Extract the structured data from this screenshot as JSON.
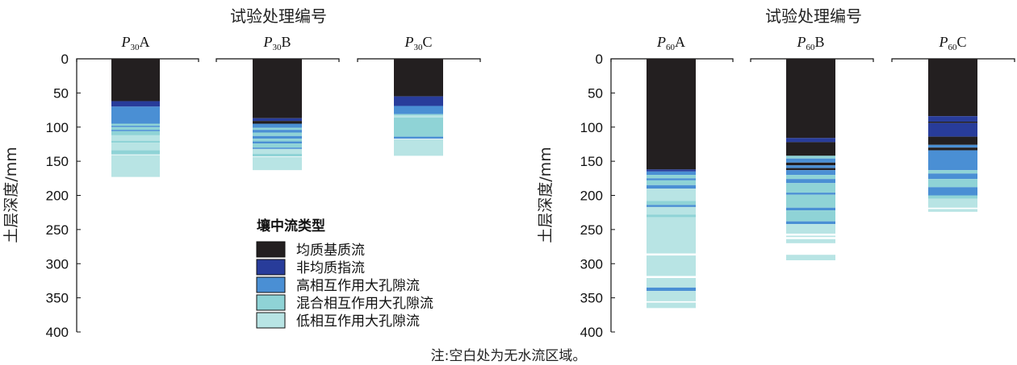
{
  "note": "注:空白处为无水流区域。",
  "legend": {
    "title": "壤中流类型",
    "items": [
      {
        "label": "均质基质流",
        "color": "#231f20"
      },
      {
        "label": "非均质指流",
        "color": "#283c9a"
      },
      {
        "label": "高相互作用大孔隙流",
        "color": "#4a8fd4"
      },
      {
        "label": "混合相互作用大孔隙流",
        "color": "#8fd3d6"
      },
      {
        "label": "低相互作用大孔隙流",
        "color": "#b8e4e4"
      }
    ]
  },
  "chart_data": [
    {
      "type": "bar",
      "title": "试验处理编号",
      "ylabel": "土层深度/mm",
      "ylim": [
        0,
        400
      ],
      "yticks": [
        "0",
        "50",
        "100",
        "150",
        "200",
        "250",
        "300",
        "350",
        "400"
      ],
      "columns": [
        {
          "label": "P",
          "sub": "30",
          "suffix": "A",
          "segments": [
            {
              "type": 0,
              "from": 0,
              "to": 62
            },
            {
              "type": 1,
              "from": 62,
              "to": 70
            },
            {
              "type": 2,
              "from": 70,
              "to": 95
            },
            {
              "type": 3,
              "from": 95,
              "to": 98
            },
            {
              "type": 2,
              "from": 98,
              "to": 100
            },
            {
              "type": 3,
              "from": 100,
              "to": 104
            },
            {
              "type": 2,
              "from": 104,
              "to": 106
            },
            {
              "type": 3,
              "from": 106,
              "to": 112
            },
            {
              "type": 4,
              "from": 112,
              "to": 120
            },
            {
              "type": 3,
              "from": 120,
              "to": 123
            },
            {
              "type": 4,
              "from": 123,
              "to": 134
            },
            {
              "type": 3,
              "from": 134,
              "to": 140
            },
            {
              "type": 4,
              "from": 141,
              "to": 173
            }
          ]
        },
        {
          "label": "P",
          "sub": "30",
          "suffix": "B",
          "segments": [
            {
              "type": 0,
              "from": 0,
              "to": 87
            },
            {
              "type": 1,
              "from": 87,
              "to": 91
            },
            {
              "type": 0,
              "from": 91,
              "to": 95
            },
            {
              "type": 2,
              "from": 95,
              "to": 101
            },
            {
              "type": 3,
              "from": 101,
              "to": 104
            },
            {
              "type": 2,
              "from": 104,
              "to": 108
            },
            {
              "type": 3,
              "from": 108,
              "to": 113
            },
            {
              "type": 2,
              "from": 113,
              "to": 117
            },
            {
              "type": 3,
              "from": 117,
              "to": 121
            },
            {
              "type": 2,
              "from": 121,
              "to": 124
            },
            {
              "type": 3,
              "from": 124,
              "to": 130
            },
            {
              "type": 2,
              "from": 130,
              "to": 132
            },
            {
              "type": 4,
              "from": 132,
              "to": 139
            },
            {
              "type": 3,
              "from": 139,
              "to": 143
            },
            {
              "type": 4,
              "from": 144,
              "to": 163
            }
          ]
        },
        {
          "label": "P",
          "sub": "30",
          "suffix": "C",
          "segments": [
            {
              "type": 0,
              "from": 0,
              "to": 55
            },
            {
              "type": 1,
              "from": 55,
              "to": 69
            },
            {
              "type": 2,
              "from": 69,
              "to": 81
            },
            {
              "type": 3,
              "from": 81,
              "to": 83
            },
            {
              "type": 4,
              "from": 83,
              "to": 86
            },
            {
              "type": 3,
              "from": 86,
              "to": 114
            },
            {
              "type": 2,
              "from": 114,
              "to": 117
            },
            {
              "type": 4,
              "from": 118,
              "to": 142
            }
          ]
        }
      ]
    },
    {
      "type": "bar",
      "title": "试验处理编号",
      "ylabel": "土层深度/mm",
      "ylim": [
        0,
        400
      ],
      "yticks": [
        "0",
        "50",
        "100",
        "150",
        "200",
        "250",
        "300",
        "350",
        "400"
      ],
      "columns": [
        {
          "label": "P",
          "sub": "60",
          "suffix": "A",
          "segments": [
            {
              "type": 0,
              "from": 0,
              "to": 162
            },
            {
              "type": 1,
              "from": 162,
              "to": 165
            },
            {
              "type": 2,
              "from": 165,
              "to": 170
            },
            {
              "type": 3,
              "from": 170,
              "to": 175
            },
            {
              "type": 2,
              "from": 175,
              "to": 178
            },
            {
              "type": 3,
              "from": 178,
              "to": 185
            },
            {
              "type": 2,
              "from": 185,
              "to": 190
            },
            {
              "type": 4,
              "from": 190,
              "to": 208
            },
            {
              "type": 3,
              "from": 208,
              "to": 214
            },
            {
              "type": 2,
              "from": 214,
              "to": 217
            },
            {
              "type": 4,
              "from": 217,
              "to": 228
            },
            {
              "type": 3,
              "from": 228,
              "to": 232
            },
            {
              "type": 4,
              "from": 232,
              "to": 285
            },
            {
              "type": 4,
              "from": 288,
              "to": 318
            },
            {
              "type": 4,
              "from": 321,
              "to": 335
            },
            {
              "type": 2,
              "from": 335,
              "to": 340
            },
            {
              "type": 4,
              "from": 340,
              "to": 355
            },
            {
              "type": 4,
              "from": 357,
              "to": 365
            }
          ]
        },
        {
          "label": "P",
          "sub": "60",
          "suffix": "B",
          "segments": [
            {
              "type": 0,
              "from": 0,
              "to": 116
            },
            {
              "type": 1,
              "from": 116,
              "to": 122
            },
            {
              "type": 0,
              "from": 122,
              "to": 142
            },
            {
              "type": 3,
              "from": 142,
              "to": 146
            },
            {
              "type": 2,
              "from": 146,
              "to": 152
            },
            {
              "type": 0,
              "from": 152,
              "to": 156
            },
            {
              "type": 2,
              "from": 156,
              "to": 160
            },
            {
              "type": 0,
              "from": 160,
              "to": 163
            },
            {
              "type": 2,
              "from": 163,
              "to": 170
            },
            {
              "type": 3,
              "from": 170,
              "to": 176
            },
            {
              "type": 2,
              "from": 176,
              "to": 182
            },
            {
              "type": 3,
              "from": 182,
              "to": 196
            },
            {
              "type": 2,
              "from": 196,
              "to": 199
            },
            {
              "type": 3,
              "from": 199,
              "to": 218
            },
            {
              "type": 2,
              "from": 218,
              "to": 222
            },
            {
              "type": 3,
              "from": 222,
              "to": 238
            },
            {
              "type": 2,
              "from": 238,
              "to": 242
            },
            {
              "type": 4,
              "from": 242,
              "to": 256
            },
            {
              "type": 4,
              "from": 259,
              "to": 261
            },
            {
              "type": 4,
              "from": 264,
              "to": 270
            },
            {
              "type": 4,
              "from": 287,
              "to": 295
            }
          ]
        },
        {
          "label": "P",
          "sub": "60",
          "suffix": "C",
          "segments": [
            {
              "type": 0,
              "from": 0,
              "to": 84
            },
            {
              "type": 1,
              "from": 84,
              "to": 92
            },
            {
              "type": 0,
              "from": 92,
              "to": 94
            },
            {
              "type": 1,
              "from": 94,
              "to": 114
            },
            {
              "type": 0,
              "from": 114,
              "to": 126
            },
            {
              "type": 2,
              "from": 126,
              "to": 130
            },
            {
              "type": 0,
              "from": 130,
              "to": 134
            },
            {
              "type": 2,
              "from": 134,
              "to": 163
            },
            {
              "type": 3,
              "from": 163,
              "to": 168
            },
            {
              "type": 2,
              "from": 168,
              "to": 176
            },
            {
              "type": 3,
              "from": 176,
              "to": 188
            },
            {
              "type": 2,
              "from": 188,
              "to": 200
            },
            {
              "type": 3,
              "from": 200,
              "to": 205
            },
            {
              "type": 4,
              "from": 205,
              "to": 218
            },
            {
              "type": 4,
              "from": 220,
              "to": 224
            }
          ]
        }
      ]
    }
  ]
}
